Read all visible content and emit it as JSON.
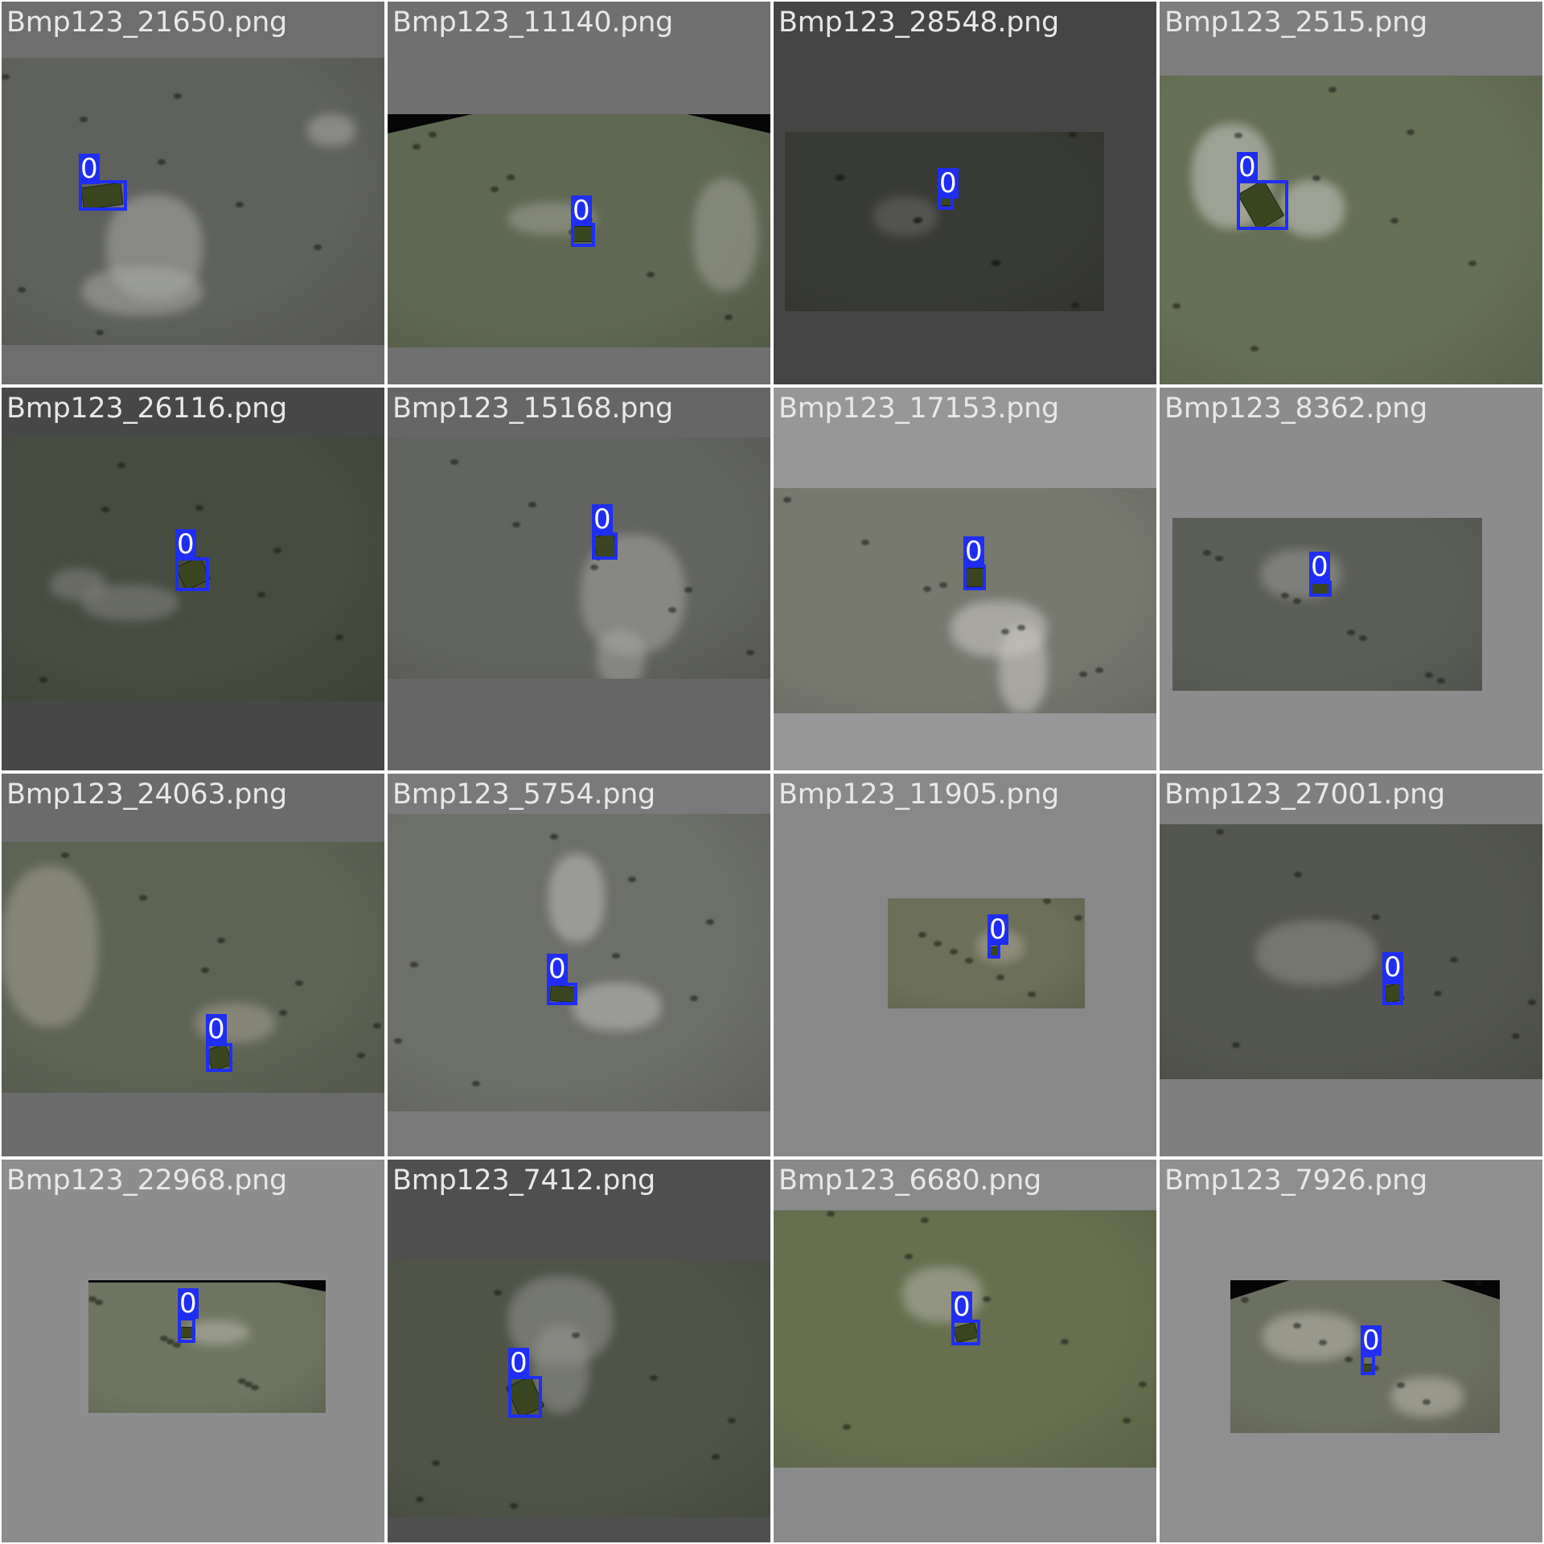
{
  "tiles": [
    {
      "file": "Bmp123_21650.png",
      "class_label": "0",
      "bg": "#6e6e6e",
      "ground": "#5f615c",
      "tint": "rgba(170,172,168,0.55)"
    },
    {
      "file": "Bmp123_11140.png",
      "class_label": "0",
      "bg": "#707070",
      "ground": "#5f6852",
      "tint": "rgba(170,168,160,0.5)"
    },
    {
      "file": "Bmp123_28548.png",
      "class_label": "0",
      "bg": "#454545",
      "ground": "#383a35",
      "tint": "rgba(110,110,108,0.5)"
    },
    {
      "file": "Bmp123_2515.png",
      "class_label": "0",
      "bg": "#7e7e7e",
      "ground": "#667055",
      "tint": "rgba(195,195,190,0.6)"
    },
    {
      "file": "Bmp123_26116.png",
      "class_label": "0",
      "bg": "#474747",
      "ground": "#464c3f",
      "tint": "rgba(140,140,138,0.5)"
    },
    {
      "file": "Bmp123_15168.png",
      "class_label": "0",
      "bg": "#666666",
      "ground": "#626460",
      "tint": "rgba(165,165,162,0.55)"
    },
    {
      "file": "Bmp123_17153.png",
      "class_label": "0",
      "bg": "#979797",
      "ground": "#77796f",
      "tint": "rgba(200,198,192,0.6)"
    },
    {
      "file": "Bmp123_8362.png",
      "class_label": "0",
      "bg": "#8c8c8c",
      "ground": "#5c5f58",
      "tint": "rgba(160,160,156,0.5)"
    },
    {
      "file": "Bmp123_24063.png",
      "class_label": "0",
      "bg": "#6b6b6b",
      "ground": "#5e6454",
      "tint": "rgba(165,160,150,0.55)"
    },
    {
      "file": "Bmp123_5754.png",
      "class_label": "0",
      "bg": "#7a7a7a",
      "ground": "#6d6f69",
      "tint": "rgba(185,185,182,0.6)"
    },
    {
      "file": "Bmp123_11905.png",
      "class_label": "0",
      "bg": "#888888",
      "ground": "#6c7058",
      "tint": "rgba(175,170,160,0.5)"
    },
    {
      "file": "Bmp123_27001.png",
      "class_label": "0",
      "bg": "#7f7f7f",
      "ground": "#54574f",
      "tint": "rgba(150,150,146,0.5)"
    },
    {
      "file": "Bmp123_22968.png",
      "class_label": "0",
      "bg": "#8d8d8d",
      "ground": "#6e7560",
      "tint": "rgba(190,185,175,0.55)"
    },
    {
      "file": "Bmp123_7412.png",
      "class_label": "0",
      "bg": "#4f4f4f",
      "ground": "#4f5447",
      "tint": "rgba(150,150,146,0.55)"
    },
    {
      "file": "Bmp123_6680.png",
      "class_label": "0",
      "bg": "#8a8a8a",
      "ground": "#66704f",
      "tint": "rgba(180,178,170,0.55)"
    },
    {
      "file": "Bmp123_7926.png",
      "class_label": "0",
      "bg": "#8f8f8f",
      "ground": "#6c7060",
      "tint": "rgba(190,185,175,0.55)"
    }
  ],
  "colors": {
    "bbox": "#1f2ef2",
    "label_text": "#e8e8e8",
    "vehicle": "#39461f"
  }
}
